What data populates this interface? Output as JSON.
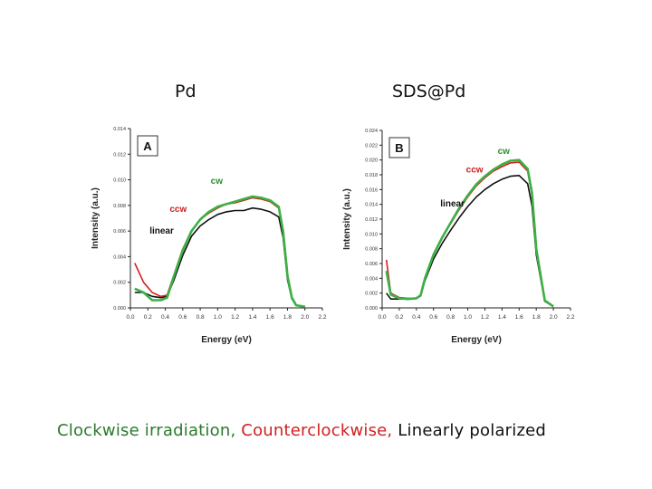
{
  "titles": {
    "left": "Pd",
    "right": "SDS@Pd"
  },
  "caption": {
    "clockwise": "Clockwise irradiation,",
    "counterclockwise": "Counterclockwise,",
    "linear": "Linearly polarized"
  },
  "colors": {
    "cw": "#3cb043",
    "ccw": "#d42020",
    "linear": "#111111"
  },
  "chart_data": [
    {
      "type": "line",
      "panel_label": "A",
      "xlabel": "Energy (eV)",
      "ylabel": "Intensity (a.u.)",
      "xlim": [
        0.0,
        2.2
      ],
      "ylim": [
        0.0,
        0.014
      ],
      "x_ticks": [
        "0.0",
        "0.2",
        "0.4",
        "0.6",
        "0.8",
        "1.0",
        "1.2",
        "1.4",
        "1.6",
        "1.8",
        "2.0",
        "2.2"
      ],
      "y_ticks": [
        "0.000",
        "0.002",
        "0.004",
        "0.006",
        "0.008",
        "0.010",
        "0.012",
        "0.014"
      ],
      "annotations": [
        "cw",
        "ccw",
        "linear"
      ],
      "series": [
        {
          "name": "cw",
          "x": [
            0.05,
            0.15,
            0.25,
            0.35,
            0.42,
            0.5,
            0.6,
            0.7,
            0.8,
            0.9,
            1.0,
            1.1,
            1.2,
            1.3,
            1.4,
            1.5,
            1.6,
            1.7,
            1.75,
            1.8,
            1.85,
            1.9,
            2.0
          ],
          "y": [
            0.0015,
            0.0012,
            0.0006,
            0.0006,
            0.0008,
            0.0025,
            0.0045,
            0.006,
            0.0069,
            0.0075,
            0.0079,
            0.0081,
            0.0083,
            0.0085,
            0.0087,
            0.0086,
            0.0084,
            0.0079,
            0.006,
            0.0025,
            0.0008,
            0.0002,
            0.0001
          ]
        },
        {
          "name": "ccw",
          "x": [
            0.05,
            0.15,
            0.25,
            0.35,
            0.42,
            0.5,
            0.6,
            0.7,
            0.8,
            0.9,
            1.0,
            1.1,
            1.2,
            1.3,
            1.4,
            1.5,
            1.6,
            1.7,
            1.75,
            1.8,
            1.85,
            1.9,
            2.0
          ],
          "y": [
            0.0035,
            0.002,
            0.0012,
            0.0009,
            0.001,
            0.0026,
            0.0046,
            0.006,
            0.0069,
            0.0074,
            0.0078,
            0.0081,
            0.0082,
            0.0084,
            0.0086,
            0.0085,
            0.0083,
            0.0078,
            0.006,
            0.0024,
            0.0008,
            0.0002,
            0.0001
          ]
        },
        {
          "name": "linear",
          "x": [
            0.05,
            0.15,
            0.25,
            0.35,
            0.42,
            0.5,
            0.6,
            0.7,
            0.8,
            0.9,
            1.0,
            1.1,
            1.2,
            1.3,
            1.4,
            1.5,
            1.6,
            1.7,
            1.75,
            1.8,
            1.85,
            1.9,
            2.0
          ],
          "y": [
            0.0012,
            0.0012,
            0.0009,
            0.0008,
            0.0009,
            0.0022,
            0.0041,
            0.0056,
            0.0064,
            0.0069,
            0.0073,
            0.0075,
            0.0076,
            0.0076,
            0.0078,
            0.0077,
            0.0075,
            0.0071,
            0.0055,
            0.0022,
            0.0007,
            0.0002,
            0.0001
          ]
        }
      ]
    },
    {
      "type": "line",
      "panel_label": "B",
      "xlabel": "Energy (eV)",
      "ylabel": "Intensity (a.u.)",
      "xlim": [
        0.0,
        2.2
      ],
      "ylim": [
        0.0,
        0.024
      ],
      "x_ticks": [
        "0.0",
        "0.2",
        "0.4",
        "0.6",
        "0.8",
        "1.0",
        "1.2",
        "1.4",
        "1.6",
        "1.8",
        "2.0",
        "2.2"
      ],
      "y_ticks": [
        "0.000",
        "0.002",
        "0.004",
        "0.006",
        "0.008",
        "0.010",
        "0.012",
        "0.014",
        "0.016",
        "0.018",
        "0.020",
        "0.022",
        "0.024"
      ],
      "annotations": [
        "cw",
        "ccw",
        "linear"
      ],
      "series": [
        {
          "name": "cw",
          "x": [
            0.05,
            0.1,
            0.2,
            0.3,
            0.4,
            0.45,
            0.5,
            0.6,
            0.7,
            0.8,
            0.9,
            1.0,
            1.1,
            1.2,
            1.3,
            1.4,
            1.5,
            1.6,
            1.7,
            1.75,
            1.8,
            1.9,
            2.0
          ],
          "y": [
            0.005,
            0.0018,
            0.0013,
            0.0012,
            0.0013,
            0.0017,
            0.004,
            0.0072,
            0.0095,
            0.0115,
            0.0135,
            0.0152,
            0.0167,
            0.0178,
            0.0187,
            0.0194,
            0.0199,
            0.02,
            0.0188,
            0.0155,
            0.008,
            0.001,
            0.0002
          ]
        },
        {
          "name": "ccw",
          "x": [
            0.05,
            0.1,
            0.2,
            0.3,
            0.4,
            0.45,
            0.5,
            0.6,
            0.7,
            0.8,
            0.9,
            1.0,
            1.1,
            1.2,
            1.3,
            1.4,
            1.5,
            1.6,
            1.7,
            1.75,
            1.8,
            1.9,
            2.0
          ],
          "y": [
            0.0065,
            0.002,
            0.0014,
            0.0013,
            0.0013,
            0.0017,
            0.004,
            0.0071,
            0.0094,
            0.0114,
            0.0133,
            0.015,
            0.0165,
            0.0176,
            0.0185,
            0.0191,
            0.0196,
            0.0197,
            0.0185,
            0.0152,
            0.0078,
            0.001,
            0.0002
          ]
        },
        {
          "name": "linear",
          "x": [
            0.05,
            0.1,
            0.2,
            0.3,
            0.4,
            0.45,
            0.5,
            0.6,
            0.7,
            0.8,
            0.9,
            1.0,
            1.1,
            1.2,
            1.3,
            1.4,
            1.5,
            1.6,
            1.7,
            1.75,
            1.8,
            1.9,
            2.0
          ],
          "y": [
            0.002,
            0.0012,
            0.0012,
            0.0012,
            0.0013,
            0.0016,
            0.0037,
            0.0066,
            0.0087,
            0.0105,
            0.0122,
            0.0137,
            0.015,
            0.016,
            0.0168,
            0.0174,
            0.0178,
            0.0179,
            0.0168,
            0.0138,
            0.0072,
            0.0009,
            0.0002
          ]
        }
      ]
    }
  ]
}
